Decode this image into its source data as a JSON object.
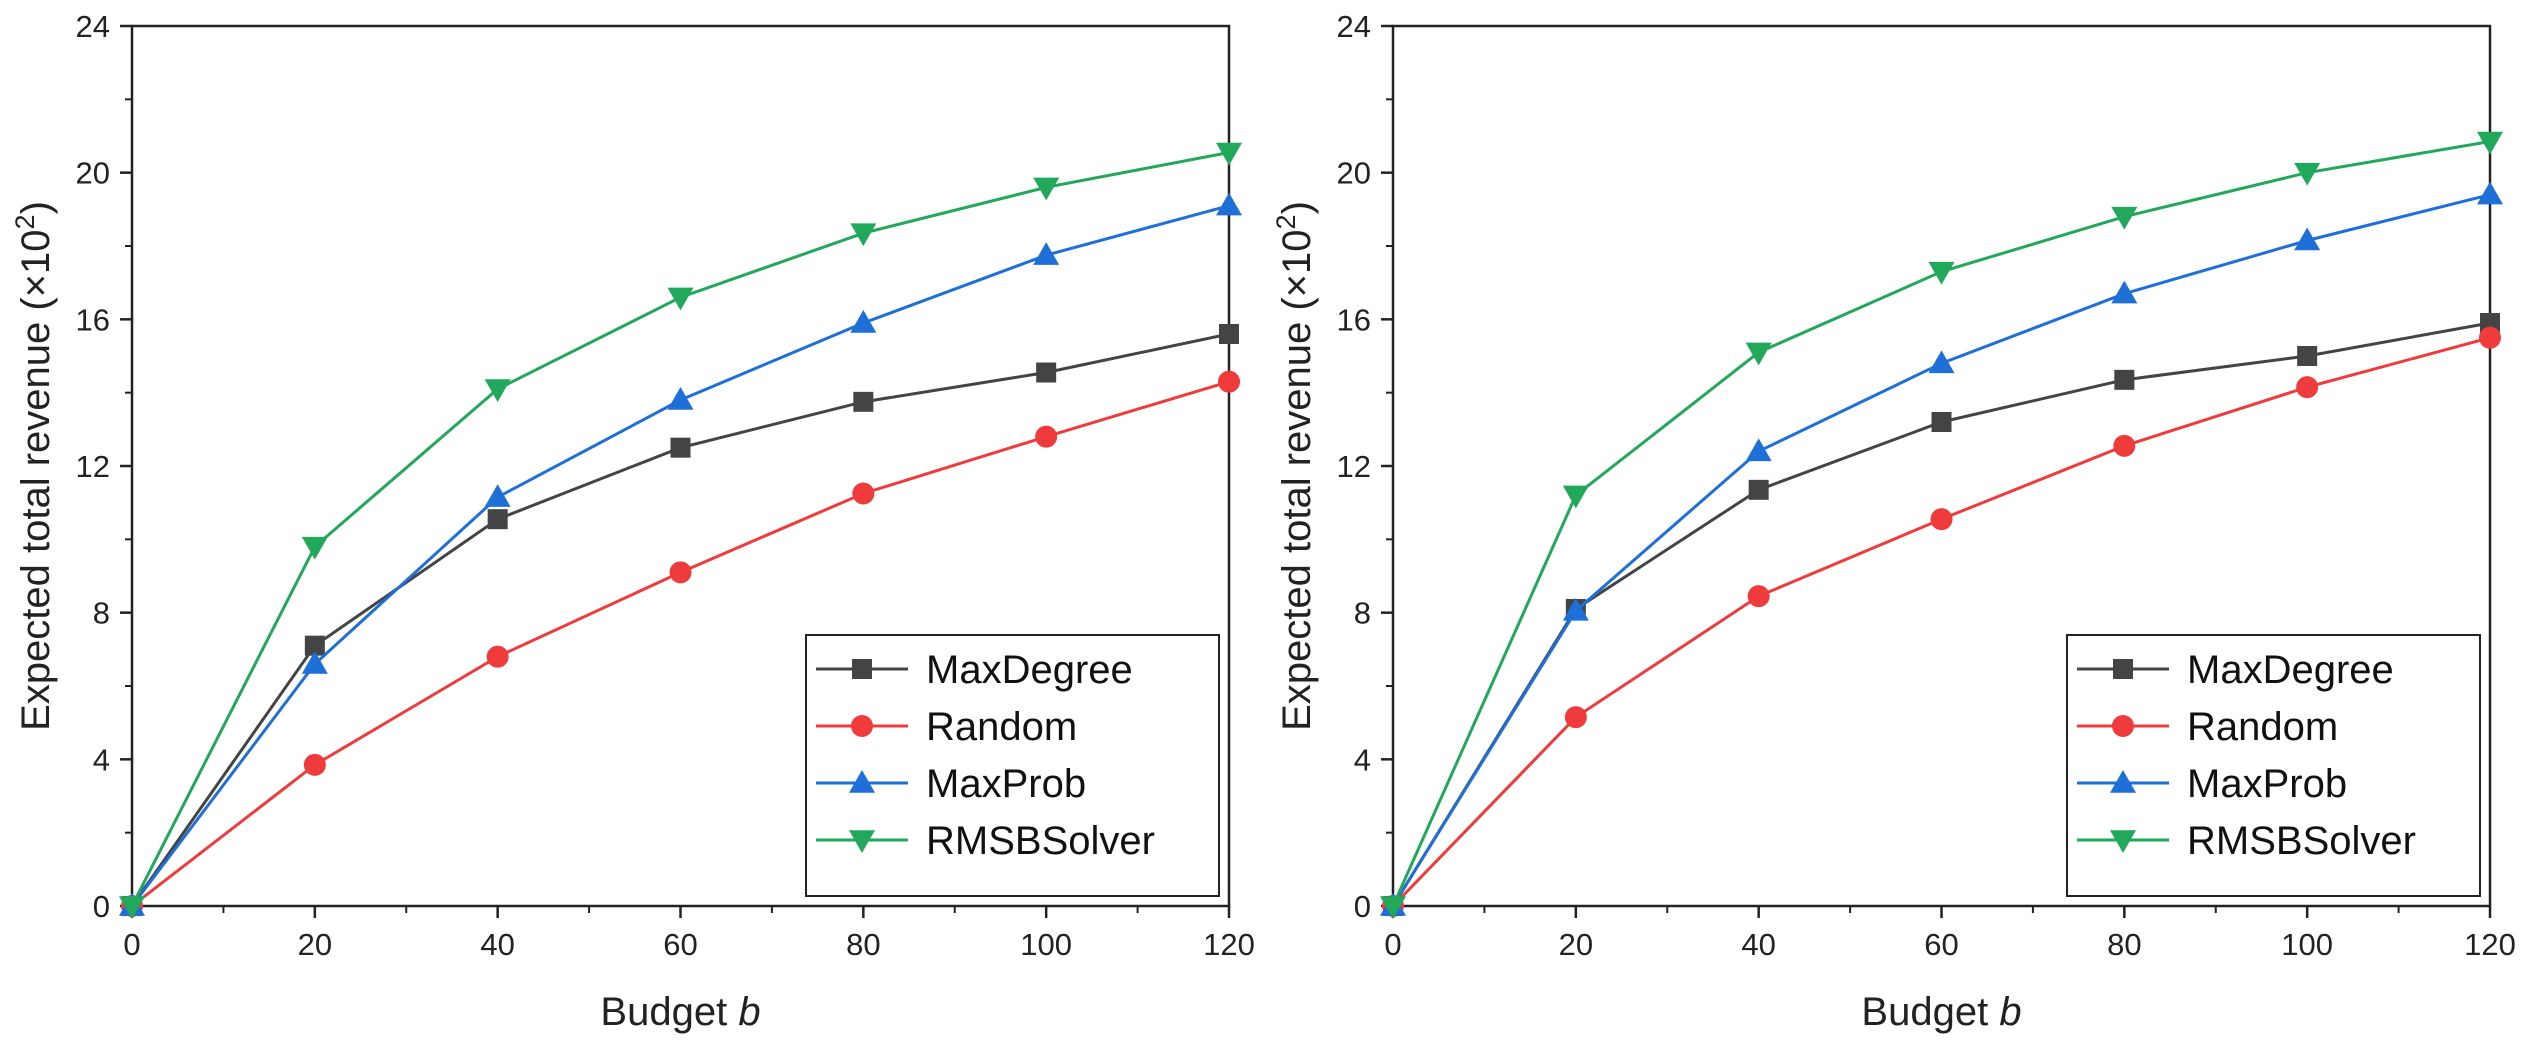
{
  "chart_data": [
    {
      "type": "line",
      "xlabel": "Budget",
      "xlabel_var": "b",
      "ylabel": "Expected total revenue (×10",
      "ylabel_exp": "2",
      "ylabel_close": ")",
      "xlim": [
        0,
        120
      ],
      "ylim": [
        0,
        24
      ],
      "xticks": [
        0,
        20,
        40,
        60,
        80,
        100,
        120
      ],
      "yticks": [
        0,
        4,
        8,
        12,
        16,
        20,
        24
      ],
      "grid": false,
      "legend_position": "bottom-right",
      "x": [
        0,
        20,
        40,
        60,
        80,
        100,
        120
      ],
      "series": [
        {
          "name": "MaxDegree",
          "color": "#444444",
          "marker": "square",
          "values": [
            0,
            7.1,
            10.55,
            12.5,
            13.75,
            14.55,
            15.6
          ]
        },
        {
          "name": "Random",
          "color": "#ef3b3b",
          "marker": "circle",
          "values": [
            0,
            3.85,
            6.8,
            9.1,
            11.25,
            12.8,
            14.3
          ]
        },
        {
          "name": "MaxProb",
          "color": "#1f6fd9",
          "marker": "triangle-up",
          "values": [
            0,
            6.6,
            11.15,
            13.8,
            15.9,
            17.75,
            19.1
          ]
        },
        {
          "name": "RMSBSolver",
          "color": "#22a85a",
          "marker": "triangle-down",
          "values": [
            0,
            9.8,
            14.1,
            16.6,
            18.35,
            19.6,
            20.55
          ]
        }
      ]
    },
    {
      "type": "line",
      "xlabel": "Budget",
      "xlabel_var": "b",
      "ylabel": "Expected total revenue (×10",
      "ylabel_exp": "2",
      "ylabel_close": ")",
      "xlim": [
        0,
        120
      ],
      "ylim": [
        0,
        24
      ],
      "xticks": [
        0,
        20,
        40,
        60,
        80,
        100,
        120
      ],
      "yticks": [
        0,
        4,
        8,
        12,
        16,
        20,
        24
      ],
      "grid": false,
      "legend_position": "bottom-right",
      "x": [
        0,
        20,
        40,
        60,
        80,
        100,
        120
      ],
      "series": [
        {
          "name": "MaxDegree",
          "color": "#444444",
          "marker": "square",
          "values": [
            0,
            8.1,
            11.35,
            13.2,
            14.35,
            15.0,
            15.9
          ]
        },
        {
          "name": "Random",
          "color": "#ef3b3b",
          "marker": "circle",
          "values": [
            0,
            5.15,
            8.45,
            10.55,
            12.55,
            14.15,
            15.5
          ]
        },
        {
          "name": "MaxProb",
          "color": "#1f6fd9",
          "marker": "triangle-up",
          "values": [
            0,
            8.05,
            12.4,
            14.8,
            16.7,
            18.15,
            19.4
          ]
        },
        {
          "name": "RMSBSolver",
          "color": "#22a85a",
          "marker": "triangle-down",
          "values": [
            0,
            11.2,
            15.1,
            17.3,
            18.8,
            20.0,
            20.85
          ]
        }
      ]
    }
  ]
}
